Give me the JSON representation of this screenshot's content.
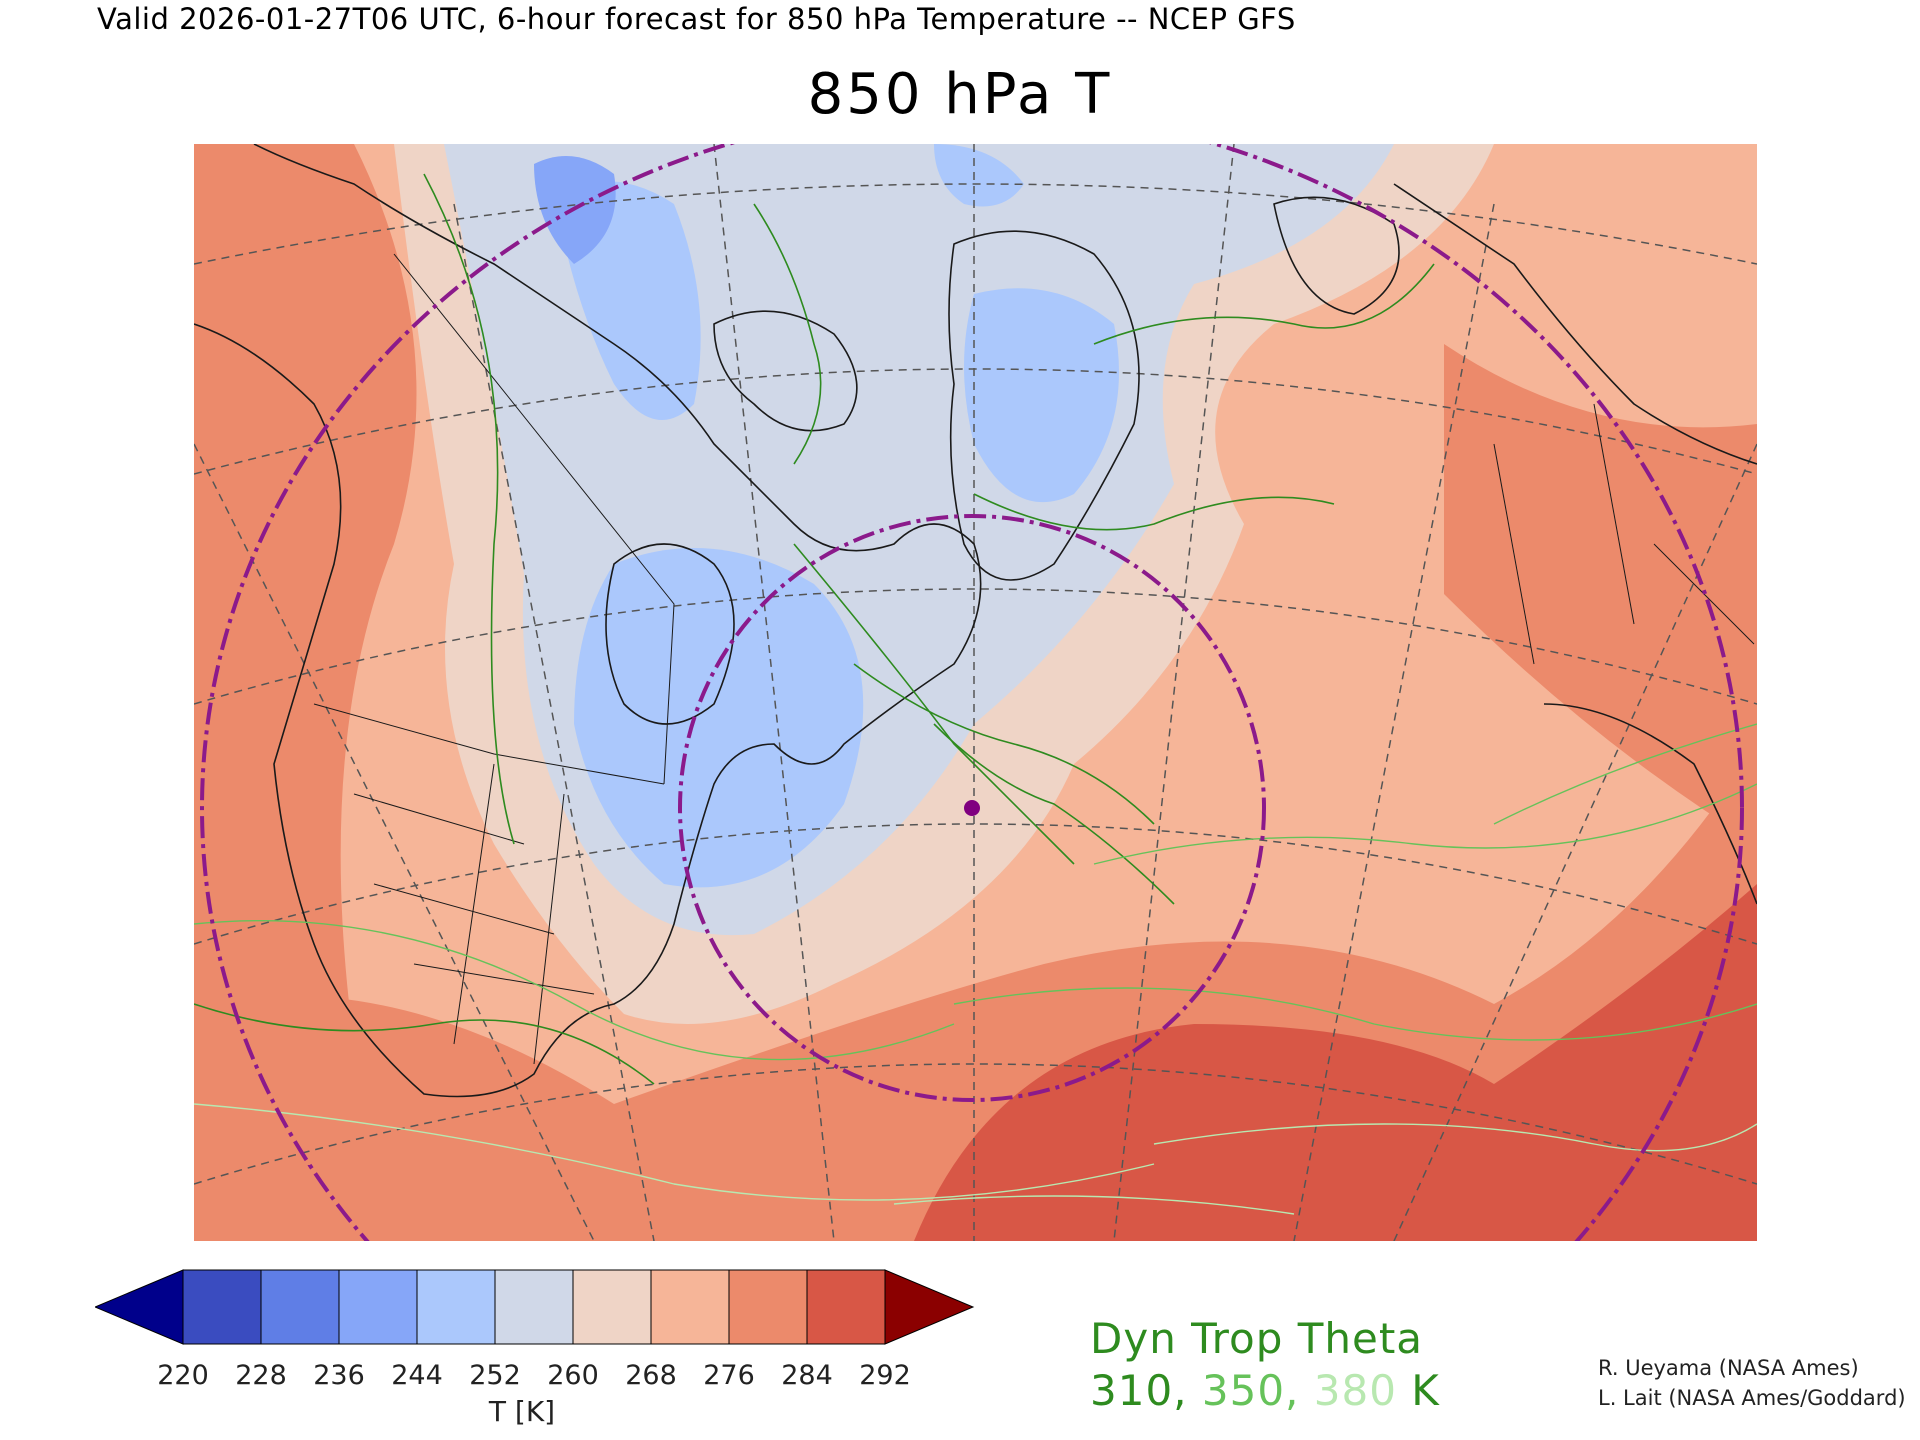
{
  "header": {
    "valid_line": "Valid 2026-01-27T06 UTC, 6-hour forecast for 850 hPa Temperature -- NCEP GFS",
    "title": "850 hPa T"
  },
  "map": {
    "projection": "polar stereographic",
    "region": "North America and North Atlantic",
    "marker_color": "#800080",
    "range_ring_color": "#8b1a8b"
  },
  "colorbar": {
    "ticks": [
      "220",
      "228",
      "236",
      "244",
      "252",
      "260",
      "268",
      "276",
      "284",
      "292"
    ],
    "colors": [
      "#00008b",
      "#3a4cc0",
      "#5f7ee6",
      "#86a6f8",
      "#abc8fc",
      "#d0d8e8",
      "#efd4c6",
      "#f6b598",
      "#ec8a6b",
      "#d85746",
      "#8b0000"
    ],
    "label": "T [K]"
  },
  "trop_legend": {
    "title": "Dyn Trop Theta",
    "values": [
      {
        "text": "310",
        "color": "#2e8b1f"
      },
      {
        "text": "350",
        "color": "#66c25a"
      },
      {
        "text": "380",
        "color": "#b8e8b0"
      }
    ],
    "separator": ", ",
    "unit": " K"
  },
  "credits": [
    "R. Ueyama (NASA Ames)",
    "L. Lait (NASA Ames/Goddard)"
  ]
}
